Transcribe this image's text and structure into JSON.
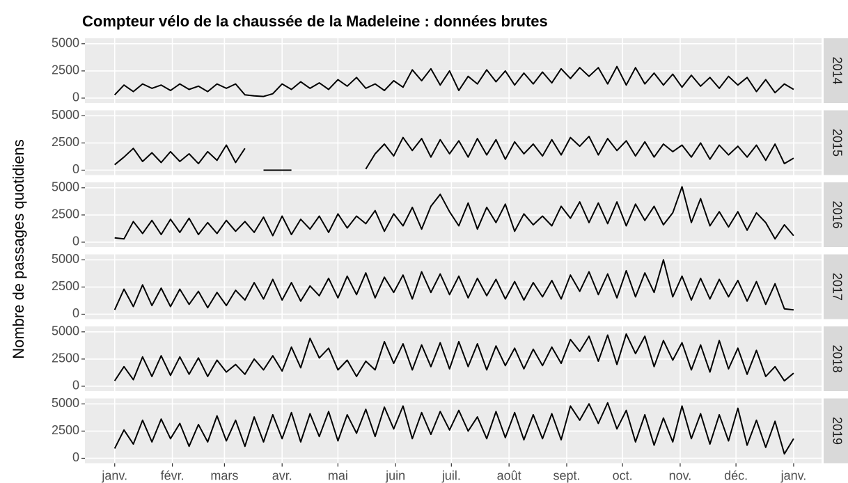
{
  "chart_data": {
    "type": "line",
    "facet": true,
    "grid": true,
    "title": "Compteur vélo de la chaussée de la Madeleine : données brutes",
    "y_label": "Nombre de passages quotidiens",
    "xlim": [
      -16,
      380
    ],
    "xticks": [
      {
        "value": 0,
        "label": "janv."
      },
      {
        "value": 31,
        "label": "févr."
      },
      {
        "value": 59,
        "label": "mars"
      },
      {
        "value": 90,
        "label": "avr."
      },
      {
        "value": 120,
        "label": "mai"
      },
      {
        "value": 151,
        "label": "juin"
      },
      {
        "value": 181,
        "label": "juil."
      },
      {
        "value": 212,
        "label": "août"
      },
      {
        "value": 243,
        "label": "sept."
      },
      {
        "value": 273,
        "label": "oct."
      },
      {
        "value": 304,
        "label": "nov."
      },
      {
        "value": 334,
        "label": "déc."
      },
      {
        "value": 365,
        "label": "janv."
      }
    ],
    "ylim": [
      -450,
      5500
    ],
    "yticks": [
      0,
      2500,
      5000
    ],
    "x": [
      0,
      5,
      10,
      15,
      20,
      25,
      30,
      35,
      40,
      45,
      50,
      55,
      60,
      65,
      70,
      75,
      80,
      85,
      90,
      95,
      100,
      105,
      110,
      115,
      120,
      125,
      130,
      135,
      140,
      145,
      150,
      155,
      160,
      165,
      170,
      175,
      180,
      185,
      190,
      195,
      200,
      205,
      210,
      215,
      220,
      225,
      230,
      235,
      240,
      245,
      250,
      255,
      260,
      265,
      270,
      275,
      280,
      285,
      290,
      295,
      300,
      305,
      310,
      315,
      320,
      325,
      330,
      335,
      340,
      345,
      350,
      355,
      360,
      365
    ],
    "series": [
      {
        "name": "2014",
        "color": "#000000",
        "values": [
          300,
          1200,
          600,
          1300,
          900,
          1200,
          700,
          1300,
          800,
          1100,
          600,
          1300,
          900,
          1300,
          300,
          200,
          150,
          400,
          1300,
          800,
          1500,
          900,
          1400,
          800,
          1700,
          1100,
          1900,
          900,
          1300,
          700,
          1600,
          1000,
          2600,
          1600,
          2700,
          1200,
          2500,
          700,
          2000,
          1300,
          2600,
          1500,
          2500,
          1200,
          2300,
          1300,
          2400,
          1400,
          2700,
          1800,
          2800,
          2000,
          2800,
          1300,
          2900,
          1200,
          2800,
          1300,
          2300,
          1200,
          2200,
          1000,
          2100,
          1100,
          1900,
          900,
          2000,
          1200,
          1900,
          600,
          1700,
          500,
          1300,
          800
        ]
      },
      {
        "name": "2015",
        "color": "#000000",
        "values": [
          500,
          1200,
          2000,
          800,
          1600,
          700,
          1700,
          800,
          1500,
          600,
          1700,
          900,
          2300,
          700,
          2000,
          null,
          0,
          0,
          0,
          0,
          null,
          null,
          null,
          null,
          null,
          null,
          null,
          100,
          1500,
          2400,
          1300,
          3000,
          1800,
          2900,
          1200,
          2800,
          1500,
          2700,
          1200,
          2900,
          1400,
          2800,
          1000,
          2600,
          1500,
          2400,
          1300,
          2800,
          1400,
          3000,
          2200,
          3100,
          1400,
          2900,
          1800,
          2700,
          1300,
          2600,
          1200,
          2400,
          1700,
          2300,
          1200,
          2500,
          1000,
          2300,
          1400,
          2200,
          1200,
          2300,
          900,
          2400,
          600,
          1100
        ]
      },
      {
        "name": "2016",
        "color": "#000000",
        "values": [
          400,
          300,
          1900,
          800,
          2000,
          700,
          2100,
          900,
          2200,
          700,
          1800,
          800,
          2000,
          1000,
          1900,
          900,
          2300,
          600,
          2400,
          700,
          2100,
          1200,
          2400,
          900,
          2600,
          1300,
          2400,
          1700,
          2900,
          1000,
          2600,
          1500,
          3200,
          1200,
          3300,
          4400,
          2800,
          1500,
          3600,
          1200,
          3200,
          1800,
          3500,
          1000,
          2600,
          1600,
          2400,
          1500,
          3300,
          2200,
          3700,
          1800,
          3600,
          1700,
          3700,
          1500,
          3500,
          2000,
          3300,
          1600,
          2700,
          5100,
          1800,
          4000,
          1500,
          2800,
          1400,
          2800,
          1100,
          2700,
          1800,
          300,
          1600,
          600
        ]
      },
      {
        "name": "2017",
        "color": "#000000",
        "values": [
          400,
          2300,
          700,
          2700,
          800,
          2400,
          700,
          2300,
          900,
          2100,
          600,
          2000,
          800,
          2200,
          1300,
          2900,
          1400,
          3200,
          1300,
          2900,
          1200,
          2600,
          1700,
          3300,
          1500,
          3500,
          1800,
          3800,
          1500,
          3400,
          2000,
          3600,
          1400,
          3900,
          2000,
          3700,
          1800,
          3500,
          1500,
          3300,
          1700,
          3200,
          1400,
          3000,
          1300,
          2900,
          1600,
          3100,
          1400,
          3600,
          2100,
          3900,
          1800,
          3700,
          1500,
          4000,
          1600,
          3800,
          2000,
          5000,
          1600,
          3500,
          1300,
          3300,
          1400,
          3200,
          1600,
          3100,
          1200,
          3000,
          900,
          2800,
          500,
          400
        ]
      },
      {
        "name": "2018",
        "color": "#000000",
        "values": [
          500,
          1800,
          600,
          2700,
          900,
          2800,
          1000,
          2700,
          1100,
          2600,
          900,
          2400,
          1300,
          2000,
          1100,
          2500,
          1500,
          2800,
          1400,
          3600,
          1700,
          4400,
          2600,
          3500,
          1500,
          2400,
          900,
          2300,
          1500,
          4100,
          2100,
          3900,
          1500,
          3800,
          1800,
          4000,
          1600,
          4100,
          1800,
          3900,
          1500,
          3700,
          1900,
          3500,
          1600,
          3400,
          1900,
          3600,
          2100,
          4300,
          3200,
          4600,
          2300,
          4700,
          2000,
          4800,
          3000,
          4600,
          1800,
          4200,
          2400,
          4000,
          1500,
          3800,
          1300,
          4200,
          1600,
          3500,
          1100,
          3300,
          900,
          1800,
          500,
          1200
        ]
      },
      {
        "name": "2019",
        "color": "#000000",
        "values": [
          900,
          2600,
          1300,
          3500,
          1500,
          3600,
          1800,
          3200,
          1100,
          3100,
          1500,
          3900,
          1600,
          3500,
          1100,
          3800,
          1500,
          4000,
          1800,
          4200,
          1500,
          4100,
          2000,
          4300,
          1600,
          4000,
          2300,
          4500,
          2000,
          4700,
          2700,
          4800,
          1800,
          4200,
          2200,
          4300,
          2600,
          4400,
          2500,
          3800,
          1800,
          4300,
          1900,
          4200,
          1700,
          4000,
          1800,
          4100,
          1700,
          4800,
          3500,
          5000,
          3200,
          5100,
          2700,
          4400,
          1500,
          4000,
          1200,
          3700,
          1500,
          4800,
          1800,
          4100,
          1300,
          4000,
          1600,
          4600,
          1200,
          3500,
          1000,
          3400,
          400,
          1800
        ]
      }
    ]
  }
}
